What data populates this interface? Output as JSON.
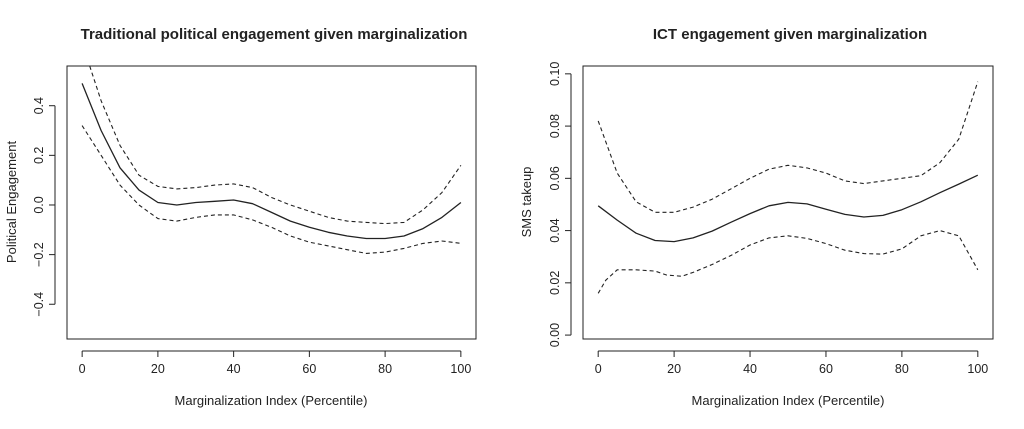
{
  "chart_data": [
    {
      "type": "line",
      "title": "Traditional political engagement given marginalization",
      "xlabel": "Marginalization Index (Percentile)",
      "ylabel": "Political Engagement",
      "xlim": [
        -4,
        104
      ],
      "ylim": [
        -0.54,
        0.56
      ],
      "xticks": [
        0,
        20,
        40,
        60,
        80,
        100
      ],
      "yticks": [
        -0.4,
        -0.2,
        0.0,
        0.2,
        0.4
      ],
      "ytick_labels": [
        "−0.4",
        "−0.2",
        "0.0",
        "0.2",
        "0.4"
      ],
      "grid": false,
      "series": [
        {
          "style": "solid",
          "x": [
            0,
            5,
            10,
            15,
            20,
            25,
            30,
            35,
            40,
            45,
            50,
            55,
            60,
            65,
            70,
            75,
            80,
            85,
            90,
            95,
            100
          ],
          "y": [
            0.49,
            0.3,
            0.15,
            0.06,
            0.01,
            0.0,
            0.01,
            0.015,
            0.02,
            0.005,
            -0.03,
            -0.065,
            -0.09,
            -0.11,
            -0.125,
            -0.135,
            -0.135,
            -0.125,
            -0.095,
            -0.05,
            0.01
          ]
        },
        {
          "style": "dashed",
          "x": [
            2,
            5,
            10,
            15,
            20,
            25,
            30,
            35,
            40,
            45,
            50,
            55,
            60,
            65,
            70,
            75,
            80,
            85,
            90,
            95,
            100
          ],
          "y": [
            0.56,
            0.42,
            0.24,
            0.12,
            0.075,
            0.065,
            0.07,
            0.08,
            0.085,
            0.07,
            0.03,
            0.0,
            -0.025,
            -0.05,
            -0.065,
            -0.07,
            -0.075,
            -0.07,
            -0.02,
            0.05,
            0.16
          ]
        },
        {
          "style": "dashed",
          "x": [
            0,
            5,
            10,
            15,
            20,
            25,
            30,
            35,
            40,
            45,
            50,
            55,
            60,
            65,
            70,
            75,
            80,
            85,
            90,
            95,
            100
          ],
          "y": [
            0.32,
            0.2,
            0.08,
            0.0,
            -0.055,
            -0.065,
            -0.05,
            -0.04,
            -0.04,
            -0.06,
            -0.09,
            -0.125,
            -0.15,
            -0.165,
            -0.18,
            -0.195,
            -0.19,
            -0.175,
            -0.155,
            -0.145,
            -0.155
          ]
        }
      ]
    },
    {
      "type": "line",
      "title": "ICT engagement given marginalization",
      "xlabel": "Marginalization Index (Percentile)",
      "ylabel": "SMS takeup",
      "xlim": [
        -4,
        104
      ],
      "ylim": [
        -0.0015,
        0.103
      ],
      "xticks": [
        0,
        20,
        40,
        60,
        80,
        100
      ],
      "yticks": [
        0.0,
        0.02,
        0.04,
        0.06,
        0.08,
        0.1
      ],
      "ytick_labels": [
        "0.00",
        "0.02",
        "0.04",
        "0.06",
        "0.08",
        "0.10"
      ],
      "grid": false,
      "series": [
        {
          "style": "solid",
          "x": [
            0,
            5,
            10,
            15,
            20,
            25,
            30,
            35,
            40,
            45,
            50,
            55,
            60,
            65,
            70,
            75,
            80,
            85,
            90,
            95,
            100
          ],
          "y": [
            0.0495,
            0.044,
            0.039,
            0.0362,
            0.0358,
            0.0372,
            0.0398,
            0.0432,
            0.0465,
            0.0495,
            0.0508,
            0.0502,
            0.0482,
            0.0462,
            0.0452,
            0.0458,
            0.048,
            0.051,
            0.0545,
            0.0578,
            0.0612
          ]
        },
        {
          "style": "dashed",
          "x": [
            0,
            5,
            10,
            15,
            20,
            25,
            30,
            35,
            40,
            45,
            50,
            55,
            60,
            65,
            70,
            75,
            80,
            85,
            90,
            95,
            100
          ],
          "y": [
            0.082,
            0.062,
            0.051,
            0.047,
            0.047,
            0.049,
            0.052,
            0.056,
            0.06,
            0.0635,
            0.065,
            0.064,
            0.062,
            0.059,
            0.058,
            0.059,
            0.06,
            0.061,
            0.066,
            0.075,
            0.097
          ]
        },
        {
          "style": "dashed",
          "x": [
            0,
            2,
            5,
            10,
            15,
            18,
            22,
            25,
            30,
            35,
            40,
            45,
            50,
            55,
            60,
            65,
            70,
            75,
            80,
            85,
            90,
            95,
            100
          ],
          "y": [
            0.016,
            0.021,
            0.025,
            0.025,
            0.0245,
            0.023,
            0.0225,
            0.024,
            0.027,
            0.0305,
            0.0345,
            0.0372,
            0.038,
            0.037,
            0.035,
            0.0325,
            0.0312,
            0.031,
            0.033,
            0.038,
            0.04,
            0.038,
            0.025
          ]
        }
      ]
    }
  ]
}
